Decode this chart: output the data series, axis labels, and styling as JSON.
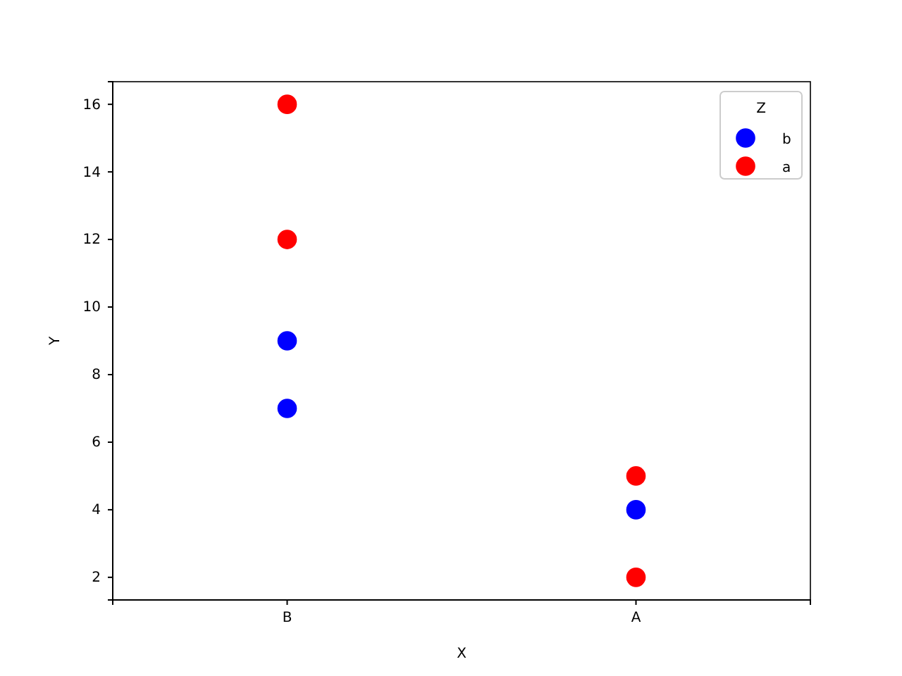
{
  "chart_data": {
    "type": "scatter",
    "xlabel": "X",
    "ylabel": "Y",
    "legend_title": "Z",
    "legend": "top right",
    "marker": "circle",
    "categories": [
      "B",
      "A"
    ],
    "ylim": [
      1.33,
      16.67
    ],
    "yticks": [
      2,
      4,
      6,
      8,
      10,
      12,
      14,
      16
    ],
    "series": [
      {
        "name": "b",
        "color": "#0000ff",
        "x": [
          "B",
          "B",
          "A"
        ],
        "values": [
          9,
          7,
          4
        ]
      },
      {
        "name": "a",
        "color": "#ff0000",
        "x": [
          "B",
          "B",
          "A",
          "A"
        ],
        "values": [
          16,
          12,
          5,
          2
        ]
      }
    ]
  }
}
